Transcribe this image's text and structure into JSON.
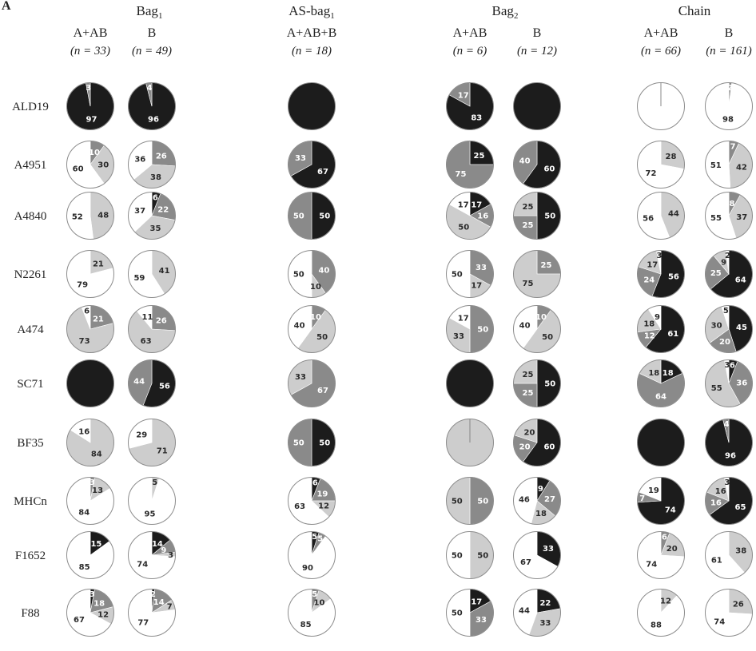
{
  "panel_label": "A",
  "chart_data": {
    "type": "pie",
    "categories": [
      "black",
      "dark grey",
      "light grey",
      "white"
    ],
    "colors": {
      "black": "#1c1c1c",
      "dark grey": "#8a8a8a",
      "light grey": "#cdcdcd",
      "white": "#ffffff"
    },
    "rows": [
      "ALD19",
      "A4951",
      "A4840",
      "N2261",
      "A474",
      "SC71",
      "BF35",
      "MHCn",
      "F1652",
      "F88"
    ],
    "groups": [
      {
        "title": "Bag",
        "subscript": "1"
      },
      {
        "title": "AS-bag",
        "subscript": "1"
      },
      {
        "title": "Bag",
        "subscript": "2"
      },
      {
        "title": "Chain",
        "subscript": ""
      }
    ],
    "columns": [
      {
        "label": "A+AB",
        "n": "(n = 33)",
        "values": [
          [
            97,
            3,
            0,
            0
          ],
          [
            0,
            10,
            30,
            60
          ],
          [
            0,
            0,
            48,
            52
          ],
          [
            0,
            0,
            21,
            79
          ],
          [
            0,
            21,
            73,
            6
          ],
          [
            100,
            0,
            0,
            0
          ],
          [
            0,
            0,
            84,
            16
          ],
          [
            0,
            3,
            13,
            84
          ],
          [
            15,
            0,
            0,
            85
          ],
          [
            3,
            18,
            12,
            67
          ]
        ]
      },
      {
        "label": "B",
        "n": "(n = 49)",
        "values": [
          [
            96,
            4,
            0,
            0
          ],
          [
            0,
            26,
            38,
            36
          ],
          [
            6,
            22,
            35,
            37
          ],
          [
            0,
            0,
            41,
            59
          ],
          [
            0,
            26,
            63,
            11
          ],
          [
            56,
            44,
            0,
            0
          ],
          [
            0,
            0,
            71,
            29
          ],
          [
            0,
            0,
            5,
            95
          ],
          [
            14,
            9,
            3,
            74
          ],
          [
            2,
            14,
            7,
            77
          ]
        ]
      },
      {
        "label": "A+AB+B",
        "n": "(n = 18)",
        "values": [
          [
            100,
            0,
            0,
            0
          ],
          [
            67,
            33,
            0,
            0
          ],
          [
            50,
            50,
            0,
            0
          ],
          [
            0,
            40,
            10,
            50
          ],
          [
            0,
            10,
            50,
            40
          ],
          [
            0,
            67,
            33,
            0
          ],
          [
            50,
            50,
            0,
            0
          ],
          [
            6,
            19,
            12,
            63
          ],
          [
            5,
            5,
            0,
            90
          ],
          [
            0,
            5,
            10,
            85
          ]
        ]
      },
      {
        "label": "A+AB",
        "n": "(n = 6)",
        "values": [
          [
            83,
            17,
            0,
            0
          ],
          [
            25,
            75,
            0,
            0
          ],
          [
            17,
            16,
            50,
            17
          ],
          [
            0,
            33,
            17,
            50
          ],
          [
            0,
            50,
            33,
            17
          ],
          [
            100,
            0,
            0,
            0
          ],
          [
            0,
            0,
            100,
            0
          ],
          [
            0,
            50,
            50,
            0
          ],
          [
            0,
            0,
            50,
            50
          ],
          [
            17,
            33,
            0,
            50
          ]
        ]
      },
      {
        "label": "B",
        "n": "(n = 12)",
        "values": [
          [
            100,
            0,
            0,
            0
          ],
          [
            60,
            40,
            0,
            0
          ],
          [
            50,
            25,
            25,
            0
          ],
          [
            0,
            25,
            75,
            0
          ],
          [
            0,
            10,
            50,
            40
          ],
          [
            50,
            25,
            25,
            0
          ],
          [
            60,
            20,
            20,
            0
          ],
          [
            9,
            27,
            18,
            46
          ],
          [
            33,
            0,
            0,
            67
          ],
          [
            22,
            0,
            33,
            44
          ]
        ]
      },
      {
        "label": "A+AB",
        "n": "(n = 66)",
        "values": [
          [
            0,
            0,
            0,
            100
          ],
          [
            0,
            0,
            28,
            72
          ],
          [
            0,
            0,
            44,
            56
          ],
          [
            56,
            24,
            17,
            3
          ],
          [
            61,
            12,
            18,
            9
          ],
          [
            18,
            64,
            18,
            0
          ],
          [
            100,
            0,
            0,
            0
          ],
          [
            74,
            7,
            0,
            19
          ],
          [
            0,
            6,
            20,
            74
          ],
          [
            0,
            0,
            12,
            88
          ]
        ]
      },
      {
        "label": "B",
        "n": "(n = 161)",
        "values": [
          [
            0,
            2,
            0,
            98
          ],
          [
            0,
            7,
            42,
            51
          ],
          [
            0,
            8,
            37,
            55
          ],
          [
            64,
            25,
            9,
            2
          ],
          [
            45,
            20,
            30,
            5
          ],
          [
            6,
            36,
            55,
            3
          ],
          [
            96,
            4,
            0,
            0
          ],
          [
            65,
            16,
            16,
            3
          ],
          [
            0,
            0,
            38,
            61
          ],
          [
            0,
            0,
            26,
            74
          ]
        ]
      }
    ]
  }
}
